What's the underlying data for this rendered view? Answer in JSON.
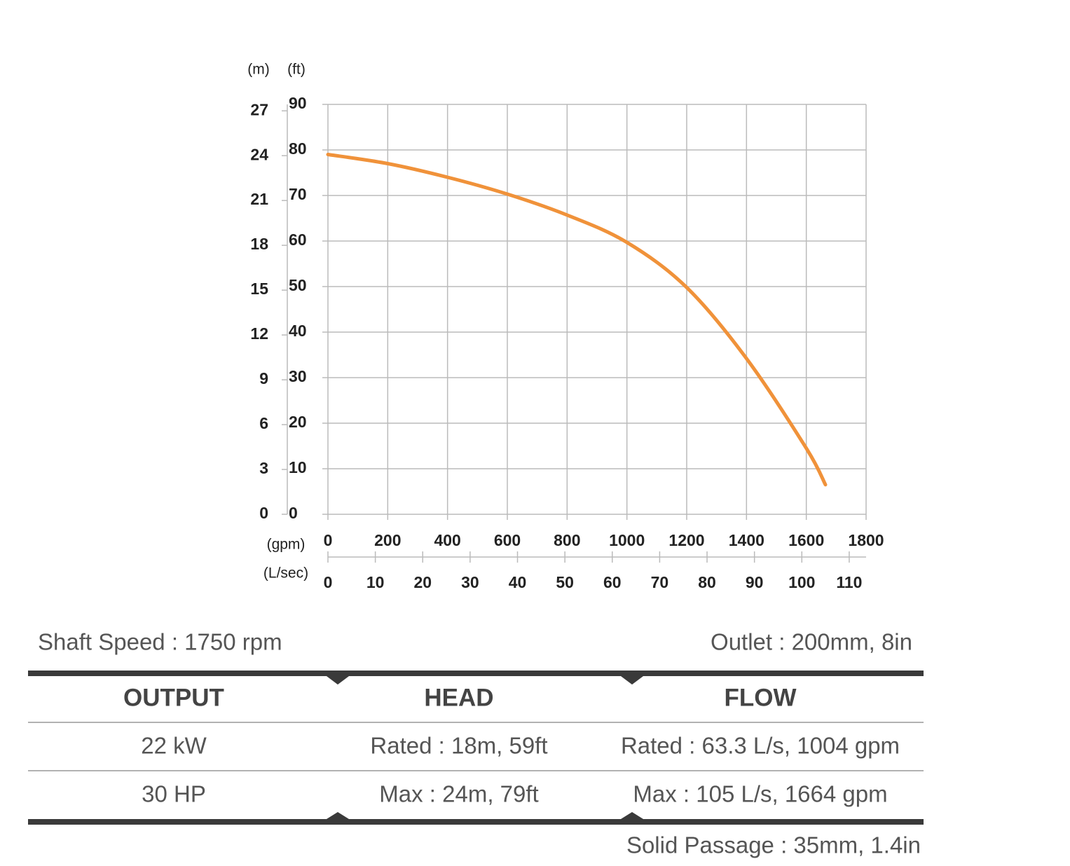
{
  "chart_data": {
    "type": "line",
    "y_label": "(ft)",
    "y2_label": "(m)",
    "x_label": "(gpm)",
    "x2_label": "(L/sec)",
    "x": [
      0,
      200,
      400,
      600,
      800,
      1000,
      1200,
      1400,
      1600,
      1664
    ],
    "series": [
      {
        "color": "#f0923a",
        "values": [
          79,
          77,
          74,
          70.3,
          65.7,
          59.7,
          49.8,
          34.2,
          14.5,
          6.5
        ]
      }
    ],
    "xlim": [
      0,
      1800
    ],
    "xticks": [
      0,
      200,
      400,
      600,
      800,
      1000,
      1200,
      1400,
      1600,
      1800
    ],
    "ylim": [
      0,
      90
    ],
    "yticks": [
      0,
      10,
      20,
      30,
      40,
      50,
      60,
      70,
      80,
      90
    ],
    "y2lim": [
      0,
      27.432
    ],
    "y2ticks": [
      0,
      3,
      6,
      9,
      12,
      15,
      18,
      21,
      24,
      27
    ],
    "x2lim": [
      0,
      113.56
    ],
    "x2ticks": [
      0,
      10,
      20,
      30,
      40,
      50,
      60,
      70,
      80,
      90,
      100,
      110
    ],
    "grid": true
  },
  "specs": {
    "shaft_speed": "Shaft Speed : 1750 rpm",
    "outlet": "Outlet : 200mm, 8in",
    "table": {
      "headers": [
        "OUTPUT",
        "HEAD",
        "FLOW"
      ],
      "rows": [
        [
          "22 kW",
          "Rated : 18m, 59ft",
          "Rated : 63.3 L/s, 1004 gpm"
        ],
        [
          "30 HP",
          "Max : 24m, 79ft",
          "Max : 105 L/s, 1664 gpm"
        ]
      ]
    },
    "solid_passage": "Solid Passage : 35mm, 1.4in"
  }
}
